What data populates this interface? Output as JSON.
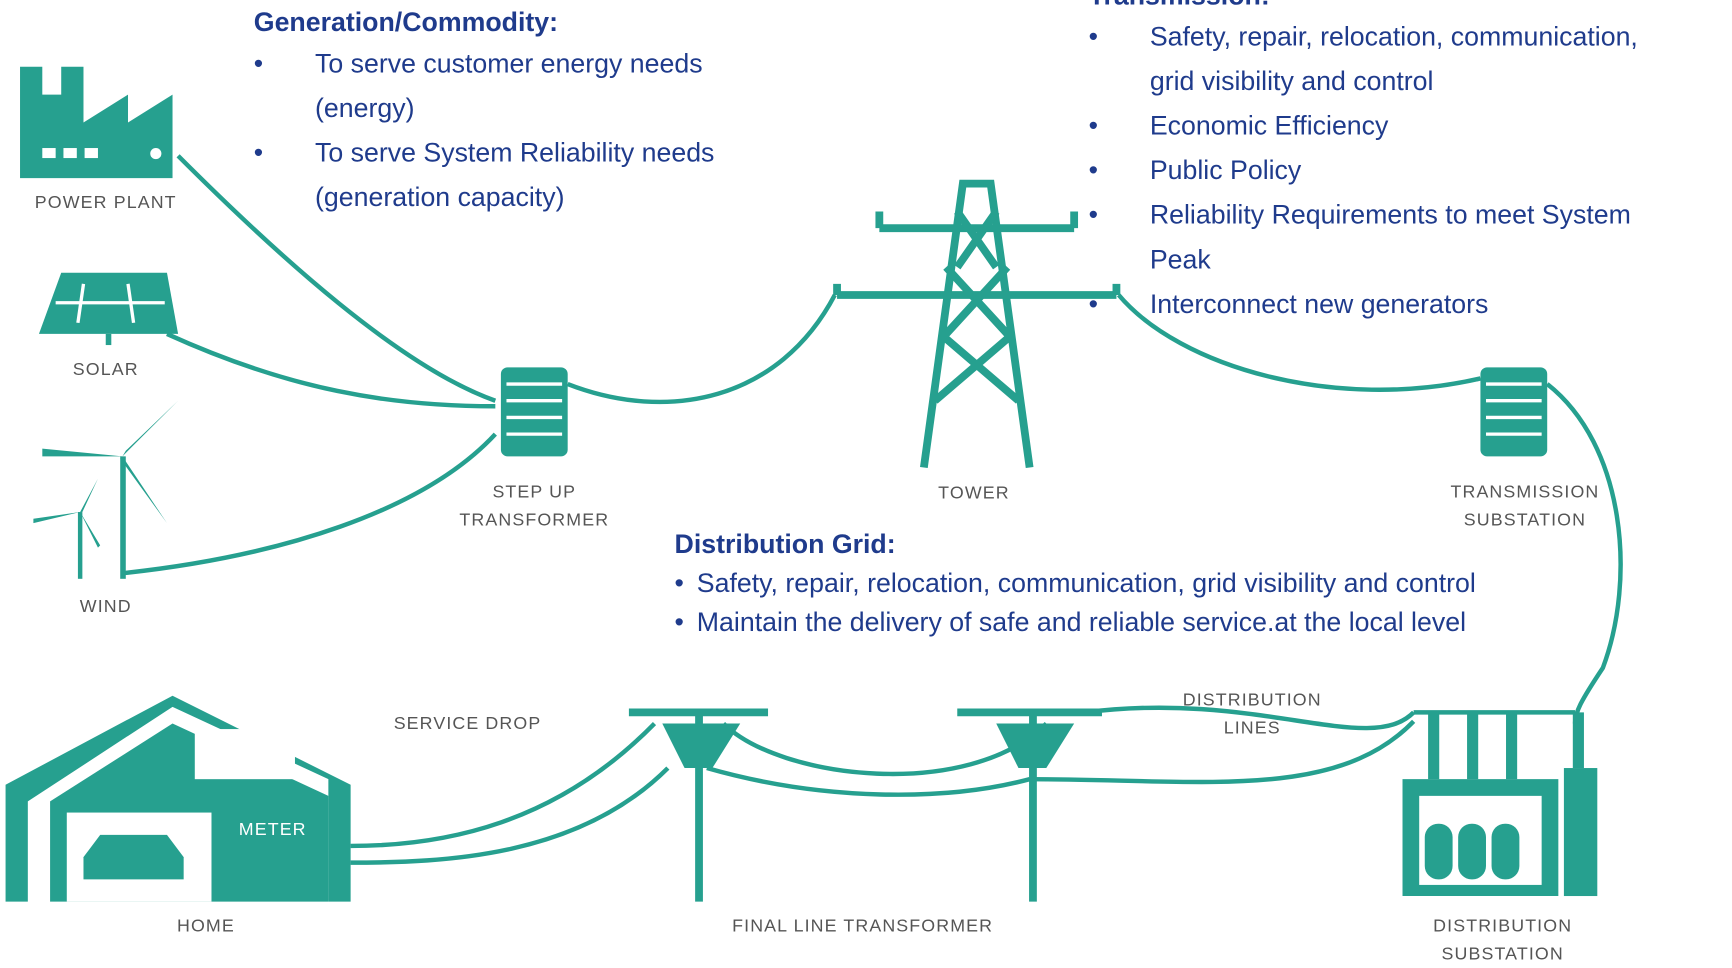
{
  "generation": {
    "title": "Generation/Commodity:",
    "items": [
      "To serve customer energy needs (energy)",
      "To serve System Reliability needs (generation capacity)"
    ]
  },
  "transmission": {
    "title": "Transmission:",
    "items": [
      "Safety, repair, relocation, communication, grid visibility and control",
      "Economic Efficiency",
      "Public Policy",
      "Reliability Requirements to meet System Peak",
      "Interconnect new generators"
    ]
  },
  "distribution": {
    "title": "Distribution Grid:",
    "items": [
      "Safety, repair, relocation, communication, grid visibility and control",
      "Maintain the delivery of safe and reliable service.at the local level"
    ]
  },
  "labels": {
    "power_plant": "POWER PLANT",
    "solar": "SOLAR",
    "wind": "WIND",
    "step_up": "STEP UP TRANSFORMER",
    "tower": "TOWER",
    "transmission_substation": "TRANSMISSION SUBSTATION",
    "service_drop": "SERVICE DROP",
    "distribution_lines": "DISTRIBUTION LINES",
    "meter": "METER",
    "home": "HOME",
    "final_line": "FINAL LINE TRANSFORMER",
    "distribution_substation": "DISTRIBUTION SUBSTATION"
  }
}
